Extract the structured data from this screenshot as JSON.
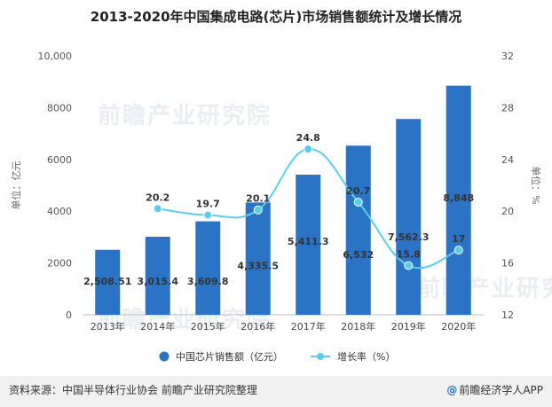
{
  "title": "2013-2020年中国集成电路(芯片)市场销售额统计及增长情况",
  "chart_data": {
    "type": "bar+line",
    "categories": [
      "2013年",
      "2014年",
      "2015年",
      "2016年",
      "2017年",
      "2018年",
      "2019年",
      "2020年"
    ],
    "series": [
      {
        "name": "中国芯片销售额（亿元）",
        "type": "bar",
        "axis": "left",
        "values": [
          2508.51,
          3015.4,
          3609.8,
          4335.5,
          5411.3,
          6532,
          7562.3,
          8848
        ],
        "labels": [
          "2,508.51",
          "3,015.4",
          "3,609.8",
          "4,335.5",
          "5,411.3",
          "6,532",
          "7,562.3",
          "8,848"
        ]
      },
      {
        "name": "增长率（%）",
        "type": "line",
        "axis": "right",
        "values": [
          null,
          20.2,
          19.7,
          20.1,
          24.8,
          20.7,
          15.8,
          17
        ],
        "labels": [
          "",
          "20.2",
          "19.7",
          "20.1",
          "24.8",
          "20.7",
          "15.8",
          "17"
        ]
      }
    ],
    "y_left": {
      "label": "单位：亿元",
      "ylim": [
        0,
        10000
      ],
      "ticks": [
        0,
        2000,
        4000,
        6000,
        8000,
        10000
      ],
      "tick_labels": [
        "0",
        "2000",
        "4000",
        "6000",
        "8000",
        "10,000"
      ]
    },
    "y_right": {
      "label": "单位：%",
      "ylim": [
        12,
        32
      ],
      "ticks": [
        12,
        16,
        20,
        24,
        28,
        32
      ],
      "tick_labels": [
        "12",
        "16",
        "20",
        "24",
        "28",
        "32"
      ]
    },
    "legend_position": "bottom",
    "bar_color": "#2a73c5",
    "line_color": "#5ccde8"
  },
  "watermark": "前瞻产业研究院",
  "footer": {
    "source": "资料来源：中国半导体行业协会 前瞻产业研究院整理",
    "brand": "前瞻经济学人APP",
    "brand_mark": "@"
  }
}
